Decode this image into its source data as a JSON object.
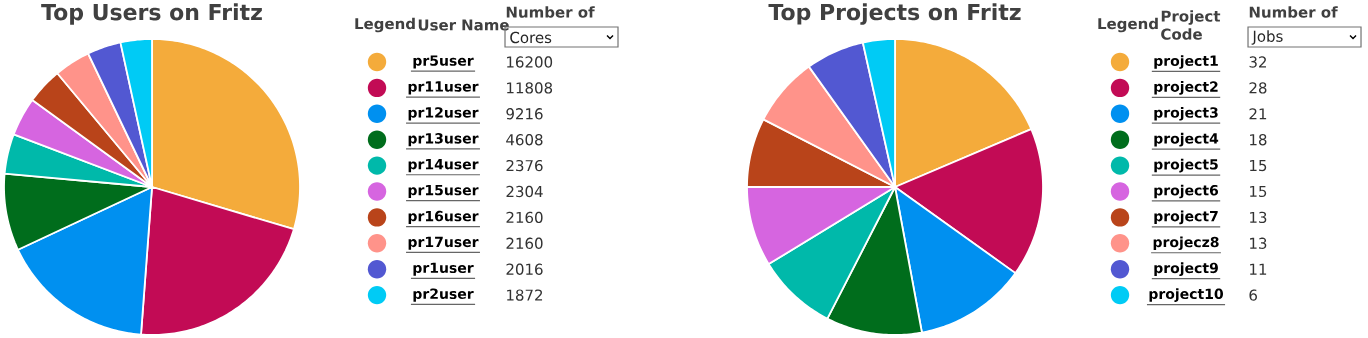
{
  "chart_data": [
    {
      "type": "pie",
      "title": "Top Users on Fritz",
      "legend": "right",
      "legend_title": "Legend",
      "data_labels": true,
      "annotations": [
        "User Name",
        "Number of",
        "Cores"
      ],
      "categories": [
        "pr5user",
        "pr11user",
        "pr12user",
        "pr13user",
        "pr14user",
        "pr15user",
        "pr16user",
        "pr17user",
        "pr1user",
        "pr2user"
      ],
      "values": [
        16200,
        11808,
        9216,
        4608,
        2376,
        2304,
        2160,
        2160,
        2016,
        1872
      ],
      "colors": [
        "#f4ab3b",
        "#c20b55",
        "#0090f0",
        "#006d1c",
        "#00b9aa",
        "#d665e0",
        "#b9441a",
        "#ff938a",
        "#5258d2",
        "#00cbf5"
      ]
    },
    {
      "type": "pie",
      "title": "Top Projects on Fritz",
      "legend": "right",
      "legend_title": "Legend",
      "data_labels": true,
      "annotations": [
        "Project Code",
        "Number of",
        "Jobs"
      ],
      "categories": [
        "project1",
        "project2",
        "project3",
        "project4",
        "project5",
        "project6",
        "project7",
        "projecz8",
        "project9",
        "project10"
      ],
      "values": [
        32,
        28,
        21,
        18,
        15,
        15,
        13,
        13,
        11,
        6
      ],
      "colors": [
        "#f4ab3b",
        "#c20b55",
        "#0090f0",
        "#006d1c",
        "#00b9aa",
        "#d665e0",
        "#b9441a",
        "#ff938a",
        "#5258d2",
        "#00cbf5"
      ]
    }
  ]
}
